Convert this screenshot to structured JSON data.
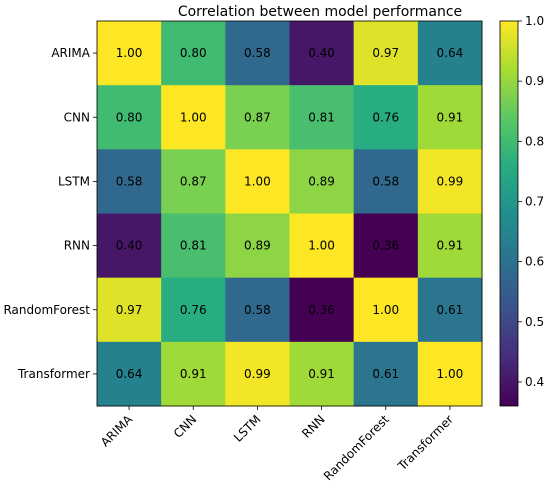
{
  "chart_data": {
    "type": "heatmap",
    "title": "Correlation between model performance",
    "rows": [
      "ARIMA",
      "CNN",
      "LSTM",
      "RNN",
      "RandomForest",
      "Transformer"
    ],
    "columns": [
      "ARIMA",
      "CNN",
      "LSTM",
      "RNN",
      "RandomForest",
      "Transformer"
    ],
    "values": [
      [
        1.0,
        0.8,
        0.58,
        0.4,
        0.97,
        0.64
      ],
      [
        0.8,
        1.0,
        0.87,
        0.81,
        0.76,
        0.91
      ],
      [
        0.58,
        0.87,
        1.0,
        0.89,
        0.58,
        0.99
      ],
      [
        0.4,
        0.81,
        0.89,
        1.0,
        0.36,
        0.91
      ],
      [
        0.97,
        0.76,
        0.58,
        0.36,
        1.0,
        0.61
      ],
      [
        0.64,
        0.91,
        0.99,
        0.91,
        0.61,
        1.0
      ]
    ],
    "cell_labels": [
      [
        "1.00",
        "0.80",
        "0.58",
        "0.40",
        "0.97",
        "0.64"
      ],
      [
        "0.80",
        "1.00",
        "0.87",
        "0.81",
        "0.76",
        "0.91"
      ],
      [
        "0.58",
        "0.87",
        "1.00",
        "0.89",
        "0.58",
        "0.99"
      ],
      [
        "0.40",
        "0.81",
        "0.89",
        "1.00",
        "0.36",
        "0.91"
      ],
      [
        "0.97",
        "0.76",
        "0.58",
        "0.36",
        "1.00",
        "0.61"
      ],
      [
        "0.64",
        "0.91",
        "0.99",
        "0.91",
        "0.61",
        "1.00"
      ]
    ],
    "colormap": "viridis",
    "colorbar": {
      "range": [
        0.36,
        1.0
      ],
      "ticks": [
        0.4,
        0.5,
        0.6,
        0.7,
        0.8,
        0.9,
        1.0
      ],
      "tick_labels": [
        "0.4",
        "0.5",
        "0.6",
        "0.7",
        "0.8",
        "0.9",
        "1.0"
      ]
    },
    "xtick_rotation": 45,
    "grid": false
  }
}
